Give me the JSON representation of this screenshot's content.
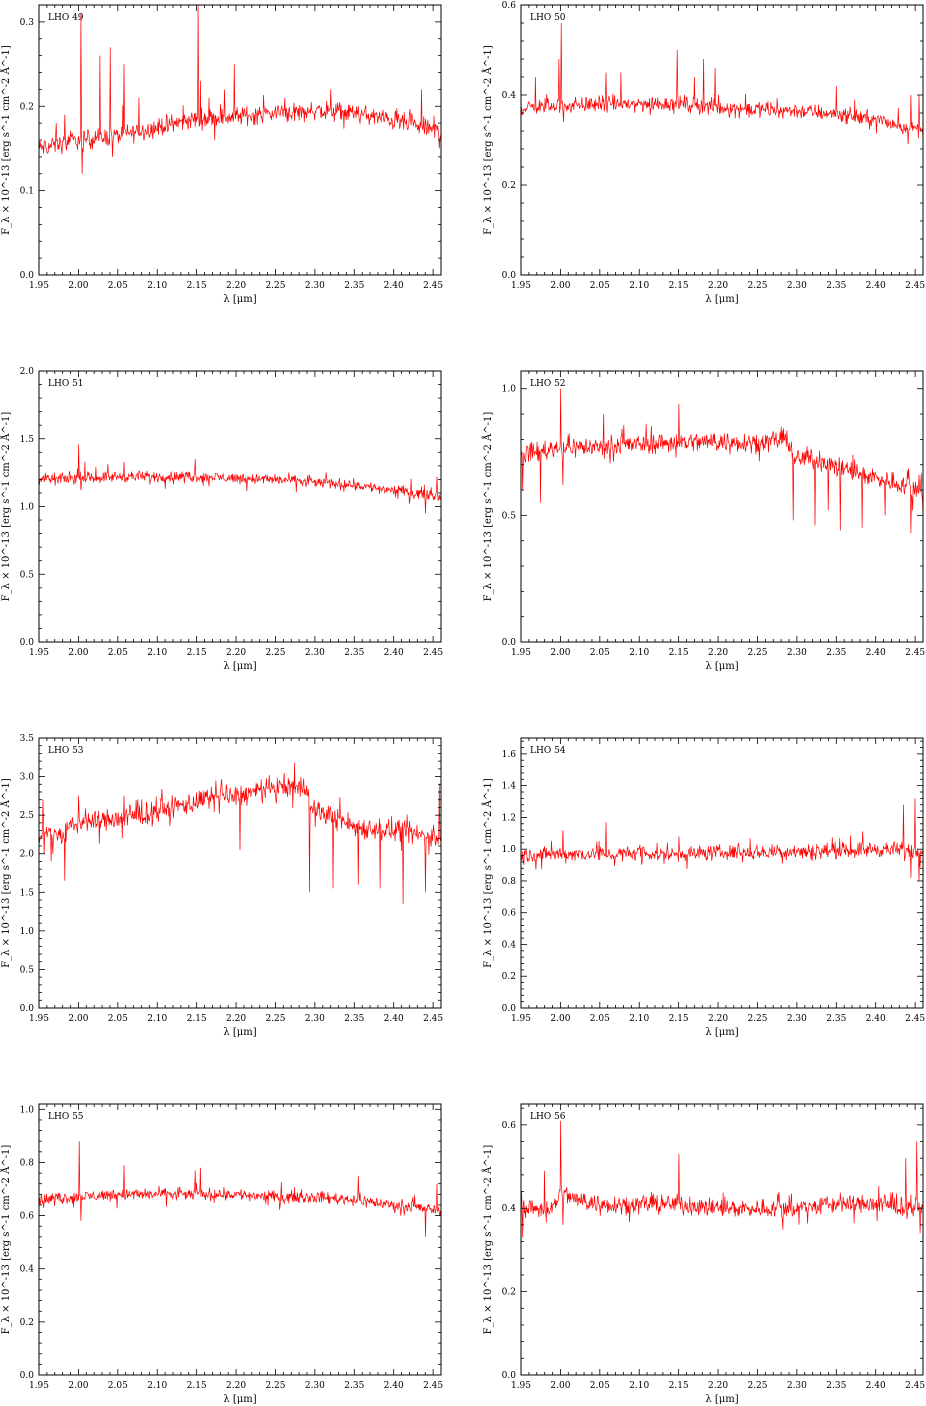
{
  "figure": {
    "line_color": "#ff0000",
    "frame_color": "#000000",
    "background": "#ffffff"
  },
  "chart_data": [
    {
      "type": "line",
      "label": "LHO 49",
      "xlabel": "λ [μm]",
      "ylabel": "F_λ × 10^-13 [erg s^-1 cm^-2 Å^-1]",
      "xlim": [
        1.95,
        2.46
      ],
      "ylim": [
        0,
        0.32
      ],
      "xticks": [
        "1.95",
        "2.00",
        "2.05",
        "2.10",
        "2.15",
        "2.20",
        "2.25",
        "2.30",
        "2.35",
        "2.40",
        "2.45"
      ],
      "yticks": [
        "0.0",
        "0.1",
        "0.2",
        "0.3"
      ],
      "continuum": [
        [
          1.95,
          0.15
        ],
        [
          2.0,
          0.16
        ],
        [
          2.05,
          0.165
        ],
        [
          2.1,
          0.175
        ],
        [
          2.15,
          0.185
        ],
        [
          2.2,
          0.188
        ],
        [
          2.25,
          0.192
        ],
        [
          2.3,
          0.195
        ],
        [
          2.35,
          0.192
        ],
        [
          2.4,
          0.183
        ],
        [
          2.46,
          0.17
        ]
      ],
      "features": [
        [
          1.972,
          0.18
        ],
        [
          1.983,
          0.19
        ],
        [
          2.003,
          0.31
        ],
        [
          2.005,
          0.12
        ],
        [
          2.027,
          0.26
        ],
        [
          2.04,
          0.27
        ],
        [
          2.043,
          0.14
        ],
        [
          2.058,
          0.25
        ],
        [
          2.077,
          0.21
        ],
        [
          2.152,
          0.32
        ],
        [
          2.155,
          0.23
        ],
        [
          2.166,
          0.21
        ],
        [
          2.185,
          0.22
        ],
        [
          2.198,
          0.25
        ],
        [
          2.262,
          0.21
        ],
        [
          2.32,
          0.22
        ],
        [
          2.435,
          0.22
        ],
        [
          2.458,
          0.15
        ]
      ],
      "noise": 0.007
    },
    {
      "type": "line",
      "label": "LHO 50",
      "xlabel": "λ [μm]",
      "ylabel": "F_λ × 10^-13 [erg s^-1 cm^-2 Å^-1]",
      "xlim": [
        1.95,
        2.46
      ],
      "ylim": [
        0,
        0.6
      ],
      "xticks": [
        "1.95",
        "2.00",
        "2.05",
        "2.10",
        "2.15",
        "2.20",
        "2.25",
        "2.30",
        "2.35",
        "2.40",
        "2.45"
      ],
      "yticks": [
        "0.0",
        "0.2",
        "0.4",
        "0.6"
      ],
      "continuum": [
        [
          1.95,
          0.37
        ],
        [
          2.0,
          0.378
        ],
        [
          2.05,
          0.38
        ],
        [
          2.1,
          0.38
        ],
        [
          2.15,
          0.382
        ],
        [
          2.2,
          0.372
        ],
        [
          2.25,
          0.368
        ],
        [
          2.3,
          0.365
        ],
        [
          2.35,
          0.358
        ],
        [
          2.4,
          0.345
        ],
        [
          2.46,
          0.32
        ]
      ],
      "features": [
        [
          1.968,
          0.44
        ],
        [
          1.998,
          0.48
        ],
        [
          2.001,
          0.56
        ],
        [
          2.004,
          0.34
        ],
        [
          2.058,
          0.45
        ],
        [
          2.077,
          0.45
        ],
        [
          2.148,
          0.5
        ],
        [
          2.17,
          0.44
        ],
        [
          2.182,
          0.48
        ],
        [
          2.196,
          0.46
        ],
        [
          2.35,
          0.42
        ],
        [
          2.445,
          0.4
        ],
        [
          2.455,
          0.4
        ]
      ],
      "noise": 0.011
    },
    {
      "type": "line",
      "label": "LHO 51",
      "xlabel": "λ [μm]",
      "ylabel": "F_λ × 10^-13 [erg s^-1 cm^-2 Å^-1]",
      "xlim": [
        1.95,
        2.46
      ],
      "ylim": [
        0,
        2.0
      ],
      "xticks": [
        "1.95",
        "2.00",
        "2.05",
        "2.10",
        "2.15",
        "2.20",
        "2.25",
        "2.30",
        "2.35",
        "2.40",
        "2.45"
      ],
      "yticks": [
        "0.0",
        "0.5",
        "1.0",
        "1.5",
        "2.0"
      ],
      "continuum": [
        [
          1.95,
          1.2
        ],
        [
          2.0,
          1.21
        ],
        [
          2.05,
          1.22
        ],
        [
          2.1,
          1.22
        ],
        [
          2.15,
          1.22
        ],
        [
          2.2,
          1.21
        ],
        [
          2.25,
          1.2
        ],
        [
          2.3,
          1.18
        ],
        [
          2.35,
          1.16
        ],
        [
          2.4,
          1.12
        ],
        [
          2.46,
          1.08
        ]
      ],
      "features": [
        [
          2.0,
          1.46
        ],
        [
          2.003,
          1.12
        ],
        [
          2.008,
          1.33
        ],
        [
          2.058,
          1.33
        ],
        [
          2.11,
          1.13
        ],
        [
          2.148,
          1.35
        ],
        [
          2.166,
          1.15
        ],
        [
          2.44,
          0.95
        ],
        [
          2.455,
          1.22
        ]
      ],
      "noise": 0.025
    },
    {
      "type": "line",
      "label": "LHO 52",
      "xlabel": "λ [μm]",
      "ylabel": "F_λ × 10^-13 [erg s^-1 cm^-2 Å^-1]",
      "xlim": [
        1.95,
        2.46
      ],
      "ylim": [
        0,
        1.07
      ],
      "xticks": [
        "1.95",
        "2.00",
        "2.05",
        "2.10",
        "2.15",
        "2.20",
        "2.25",
        "2.30",
        "2.35",
        "2.40",
        "2.45"
      ],
      "yticks": [
        "0.0",
        "0.5",
        "1.0"
      ],
      "continuum": [
        [
          1.95,
          0.74
        ],
        [
          2.0,
          0.77
        ],
        [
          2.05,
          0.77
        ],
        [
          2.1,
          0.78
        ],
        [
          2.15,
          0.79
        ],
        [
          2.2,
          0.79
        ],
        [
          2.25,
          0.79
        ],
        [
          2.29,
          0.8
        ],
        [
          2.295,
          0.72
        ],
        [
          2.32,
          0.73
        ],
        [
          2.35,
          0.69
        ],
        [
          2.4,
          0.65
        ],
        [
          2.46,
          0.6
        ]
      ],
      "features": [
        [
          1.952,
          0.6
        ],
        [
          1.975,
          0.55
        ],
        [
          2.0,
          1.0
        ],
        [
          2.003,
          0.62
        ],
        [
          2.055,
          0.9
        ],
        [
          2.15,
          0.94
        ],
        [
          2.295,
          0.48
        ],
        [
          2.323,
          0.46
        ],
        [
          2.34,
          0.52
        ],
        [
          2.355,
          0.44
        ],
        [
          2.383,
          0.45
        ],
        [
          2.412,
          0.5
        ],
        [
          2.445,
          0.43
        ],
        [
          2.46,
          0.5
        ]
      ],
      "noise": 0.025
    },
    {
      "type": "line",
      "label": "LHO 53",
      "xlabel": "λ [μm]",
      "ylabel": "F_λ × 10^-13 [erg s^-1 cm^-2 Å^-1]",
      "xlim": [
        1.95,
        2.46
      ],
      "ylim": [
        0,
        3.5
      ],
      "xticks": [
        "1.95",
        "2.00",
        "2.05",
        "2.10",
        "2.15",
        "2.20",
        "2.25",
        "2.30",
        "2.35",
        "2.40",
        "2.45"
      ],
      "yticks": [
        "0.0",
        "0.5",
        "1.0",
        "1.5",
        "2.0",
        "2.5",
        "3.0",
        "3.5"
      ],
      "continuum": [
        [
          1.95,
          2.25
        ],
        [
          1.98,
          2.25
        ],
        [
          2.0,
          2.4
        ],
        [
          2.05,
          2.45
        ],
        [
          2.1,
          2.55
        ],
        [
          2.15,
          2.68
        ],
        [
          2.2,
          2.75
        ],
        [
          2.25,
          2.85
        ],
        [
          2.29,
          2.88
        ],
        [
          2.295,
          2.55
        ],
        [
          2.32,
          2.5
        ],
        [
          2.35,
          2.35
        ],
        [
          2.4,
          2.3
        ],
        [
          2.46,
          2.2
        ]
      ],
      "features": [
        [
          1.955,
          2.7
        ],
        [
          1.965,
          1.9
        ],
        [
          1.983,
          1.65
        ],
        [
          2.0,
          2.75
        ],
        [
          2.205,
          2.05
        ],
        [
          2.293,
          1.5
        ],
        [
          2.323,
          1.55
        ],
        [
          2.355,
          1.6
        ],
        [
          2.383,
          1.55
        ],
        [
          2.412,
          1.35
        ],
        [
          2.44,
          1.5
        ],
        [
          2.458,
          2.9
        ]
      ],
      "noise": 0.09
    },
    {
      "type": "line",
      "label": "LHO 54",
      "xlabel": "λ [μm]",
      "ylabel": "F_λ × 10^-13 [erg s^-1 cm^-2 Å^-1]",
      "xlim": [
        1.95,
        2.46
      ],
      "ylim": [
        0,
        1.7
      ],
      "xticks": [
        "1.95",
        "2.00",
        "2.05",
        "2.10",
        "2.15",
        "2.20",
        "2.25",
        "2.30",
        "2.35",
        "2.40",
        "2.45"
      ],
      "yticks": [
        "0.0",
        "0.2",
        "0.4",
        "0.6",
        "0.8",
        "1.0",
        "1.2",
        "1.4",
        "1.6"
      ],
      "continuum": [
        [
          1.95,
          0.96
        ],
        [
          2.0,
          0.97
        ],
        [
          2.05,
          0.97
        ],
        [
          2.1,
          0.97
        ],
        [
          2.15,
          0.97
        ],
        [
          2.2,
          0.98
        ],
        [
          2.25,
          0.98
        ],
        [
          2.3,
          0.99
        ],
        [
          2.35,
          0.99
        ],
        [
          2.4,
          1.0
        ],
        [
          2.46,
          0.99
        ]
      ],
      "features": [
        [
          2.003,
          1.12
        ],
        [
          2.058,
          1.17
        ],
        [
          2.15,
          1.08
        ],
        [
          2.435,
          1.28
        ],
        [
          2.445,
          0.82
        ],
        [
          2.45,
          1.32
        ],
        [
          2.455,
          0.8
        ]
      ],
      "noise": 0.03
    },
    {
      "type": "line",
      "label": "LHO 55",
      "xlabel": "λ [μm]",
      "ylabel": "F_λ × 10^-13 [erg s^-1 cm^-2 Å^-1]",
      "xlim": [
        1.95,
        2.46
      ],
      "ylim": [
        0,
        1.02
      ],
      "xticks": [
        "1.95",
        "2.00",
        "2.05",
        "2.10",
        "2.15",
        "2.20",
        "2.25",
        "2.30",
        "2.35",
        "2.40",
        "2.45"
      ],
      "yticks": [
        "0.0",
        "0.2",
        "0.4",
        "0.6",
        "0.8",
        "1.0"
      ],
      "continuum": [
        [
          1.95,
          0.66
        ],
        [
          2.0,
          0.67
        ],
        [
          2.05,
          0.68
        ],
        [
          2.1,
          0.68
        ],
        [
          2.15,
          0.68
        ],
        [
          2.2,
          0.68
        ],
        [
          2.25,
          0.67
        ],
        [
          2.3,
          0.67
        ],
        [
          2.35,
          0.66
        ],
        [
          2.4,
          0.64
        ],
        [
          2.46,
          0.62
        ]
      ],
      "features": [
        [
          2.001,
          0.88
        ],
        [
          2.003,
          0.58
        ],
        [
          2.058,
          0.79
        ],
        [
          2.148,
          0.77
        ],
        [
          2.155,
          0.78
        ],
        [
          2.355,
          0.75
        ],
        [
          2.44,
          0.52
        ],
        [
          2.455,
          0.72
        ]
      ],
      "noise": 0.014
    },
    {
      "type": "line",
      "label": "LHO 56",
      "xlabel": "λ [μm]",
      "ylabel": "F_λ × 10^-13 [erg s^-1 cm^-2 Å^-1]",
      "xlim": [
        1.95,
        2.46
      ],
      "ylim": [
        0,
        0.65
      ],
      "xticks": [
        "1.95",
        "2.00",
        "2.05",
        "2.10",
        "2.15",
        "2.20",
        "2.25",
        "2.30",
        "2.35",
        "2.40",
        "2.45"
      ],
      "yticks": [
        "0.0",
        "0.2",
        "0.4",
        "0.6"
      ],
      "continuum": [
        [
          1.95,
          0.4
        ],
        [
          1.99,
          0.4
        ],
        [
          2.0,
          0.44
        ],
        [
          2.02,
          0.42
        ],
        [
          2.05,
          0.41
        ],
        [
          2.1,
          0.41
        ],
        [
          2.15,
          0.41
        ],
        [
          2.2,
          0.4
        ],
        [
          2.25,
          0.4
        ],
        [
          2.3,
          0.4
        ],
        [
          2.35,
          0.41
        ],
        [
          2.4,
          0.41
        ],
        [
          2.46,
          0.4
        ]
      ],
      "features": [
        [
          1.952,
          0.33
        ],
        [
          1.98,
          0.49
        ],
        [
          2.0,
          0.61
        ],
        [
          2.003,
          0.36
        ],
        [
          2.15,
          0.53
        ],
        [
          2.438,
          0.52
        ],
        [
          2.452,
          0.56
        ],
        [
          2.456,
          0.34
        ]
      ],
      "noise": 0.014
    }
  ]
}
